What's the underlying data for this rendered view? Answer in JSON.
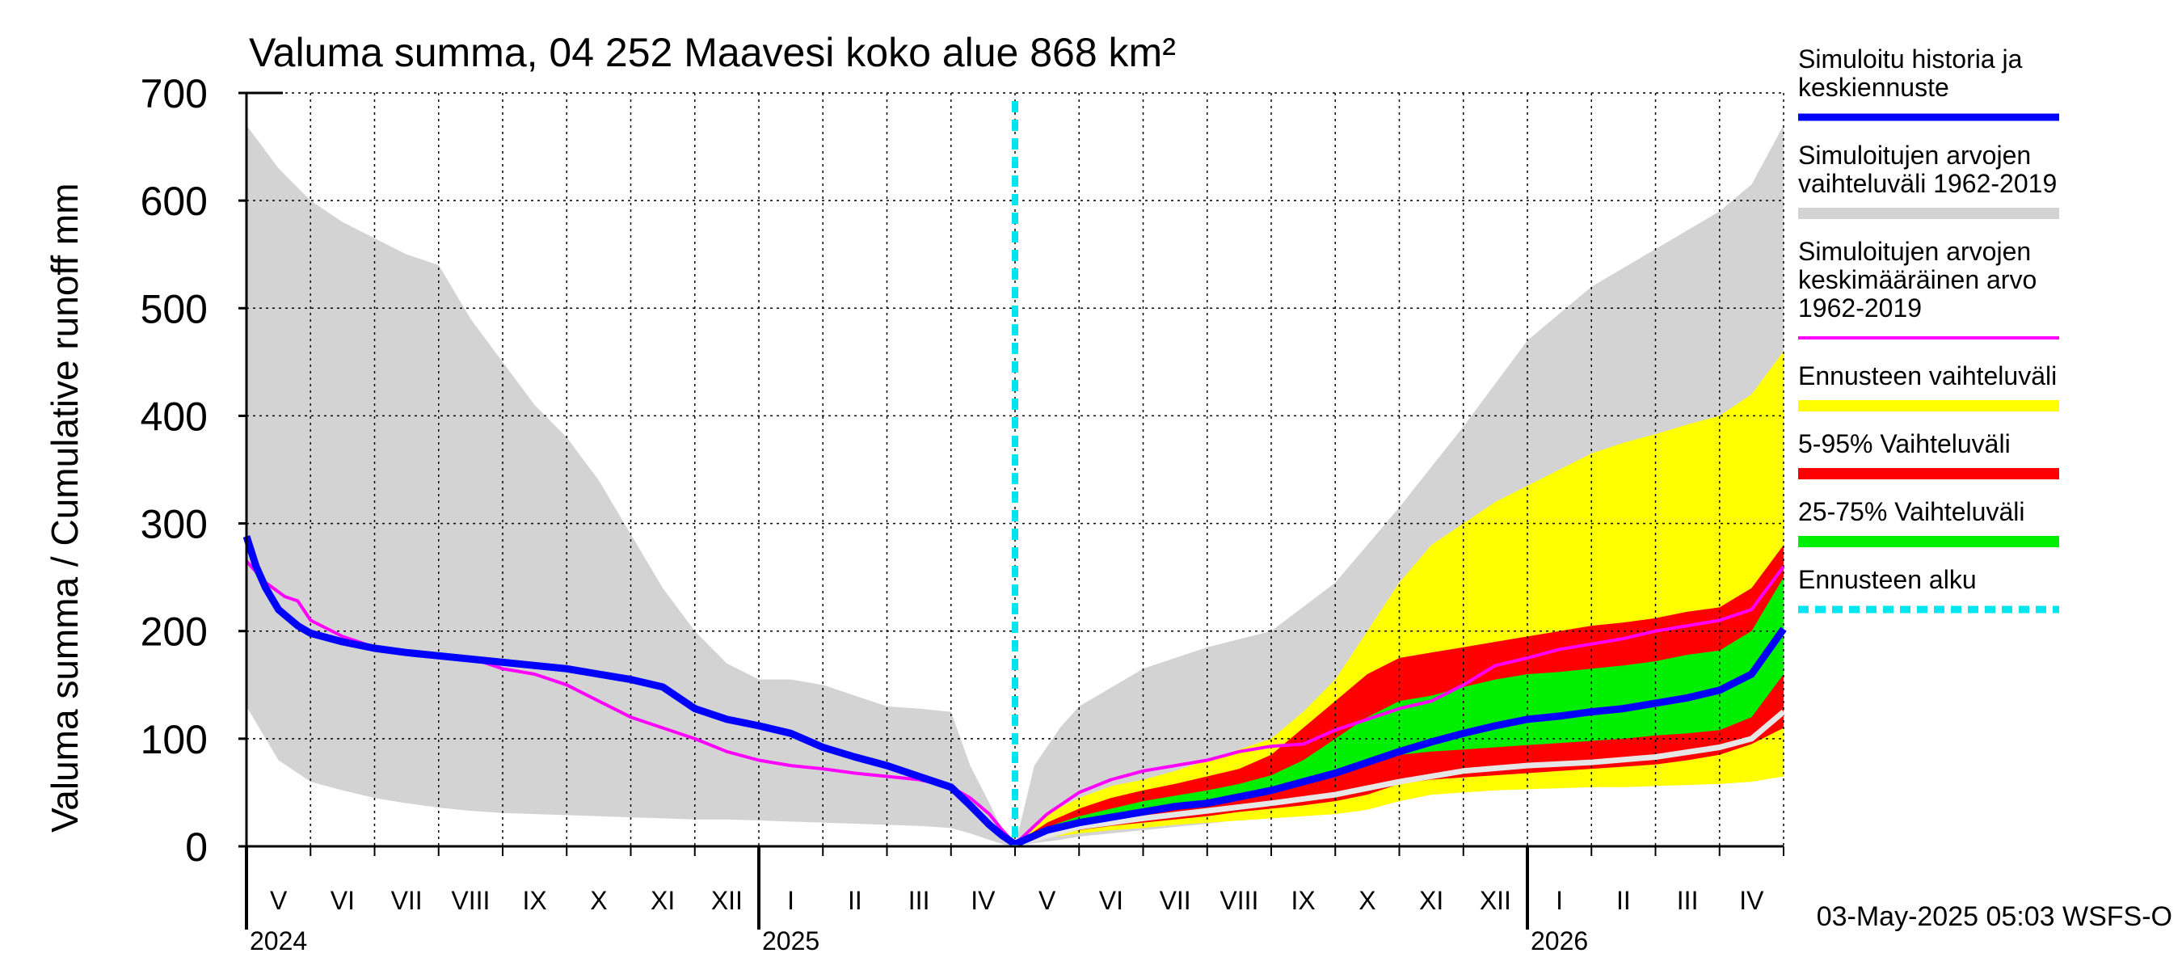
{
  "chart_data": {
    "type": "area",
    "title": "Valuma summa, 04 252 Maavesi koko alue 868 km²",
    "ylabel": "Valuma summa / Cumulative runoff    mm",
    "ylim": [
      0,
      700
    ],
    "yticks": [
      0,
      100,
      200,
      300,
      400,
      500,
      600,
      700
    ],
    "x_range_months": [
      0,
      24
    ],
    "forecast_start_month": 12,
    "month_labels": [
      "V",
      "VI",
      "VII",
      "VIII",
      "IX",
      "X",
      "XI",
      "XII",
      "I",
      "II",
      "III",
      "IV",
      "V",
      "VI",
      "VII",
      "VIII",
      "IX",
      "X",
      "XI",
      "XII",
      "I",
      "II",
      "III",
      "IV"
    ],
    "year_labels": [
      {
        "label": "2024",
        "month": 0
      },
      {
        "label": "2025",
        "month": 8
      },
      {
        "label": "2026",
        "month": 20
      }
    ],
    "colors": {
      "history_range": "#d3d3d3",
      "mean": "#ff00ff",
      "simulated": "#0000ff",
      "forecast_range": "#ffff00",
      "p5_95": "#ff0000",
      "p25_75": "#00ee00",
      "forecast_start": "#00e5ee",
      "median_forecast": "#e6e6e6"
    },
    "legend": [
      {
        "label": "Simuloitu historia ja\nkeskiennuste",
        "color": "#0000ff",
        "style": "line"
      },
      {
        "label": "Simuloitujen arvojen\nvaihteluväli 1962-2019",
        "color": "#d3d3d3",
        "style": "band"
      },
      {
        "label": "Simuloitujen arvojen\nkeskimääräinen arvo\n   1962-2019",
        "color": "#ff00ff",
        "style": "thinline"
      },
      {
        "label": "Ennusteen vaihteluväli",
        "color": "#ffff00",
        "style": "band"
      },
      {
        "label": "5-95% Vaihteluväli",
        "color": "#ff0000",
        "style": "band"
      },
      {
        "label": "25-75% Vaihteluväli",
        "color": "#00ee00",
        "style": "band"
      },
      {
        "label": "Ennusteen alku",
        "color": "#00e5ee",
        "style": "dashed"
      }
    ],
    "history_range": {
      "x": [
        0,
        0.5,
        1,
        1.5,
        2,
        2.5,
        3,
        3.5,
        4,
        4.5,
        5,
        5.5,
        6,
        6.5,
        7,
        7.5,
        8,
        8.5,
        9,
        9.5,
        10,
        10.5,
        11,
        11.3,
        11.6,
        11.8,
        12
      ],
      "upper": [
        670,
        630,
        600,
        580,
        565,
        550,
        540,
        490,
        450,
        410,
        380,
        340,
        290,
        240,
        200,
        170,
        155,
        155,
        150,
        140,
        130,
        128,
        125,
        75,
        40,
        15,
        0
      ],
      "lower": [
        130,
        80,
        60,
        52,
        45,
        40,
        36,
        33,
        31,
        30,
        29,
        28,
        27,
        26,
        25,
        25,
        24,
        23,
        22,
        21,
        20,
        19,
        17,
        12,
        6,
        2,
        0
      ]
    },
    "history_range_forecast": {
      "x": [
        12,
        12.3,
        12.7,
        13,
        14,
        15,
        16,
        17,
        18,
        19,
        20,
        21,
        22,
        23,
        23.5,
        24
      ],
      "upper": [
        0,
        75,
        110,
        130,
        165,
        185,
        200,
        245,
        315,
        390,
        470,
        520,
        555,
        590,
        615,
        670
      ],
      "lower": [
        0,
        3,
        6,
        9,
        15,
        21,
        28,
        38,
        50,
        55,
        58,
        60,
        62,
        64,
        66,
        70
      ]
    },
    "mean_series": {
      "x": [
        0,
        0.3,
        0.6,
        0.8,
        1,
        1.5,
        2,
        2.5,
        3,
        3.5,
        4,
        4.5,
        5,
        5.5,
        6,
        6.5,
        7,
        7.5,
        8,
        8.5,
        9,
        9.5,
        10,
        10.5,
        11,
        11.3,
        11.6,
        11.8,
        12,
        12.5,
        13,
        13.5,
        14,
        14.5,
        15,
        15.5,
        16,
        16.5,
        17,
        17.5,
        18,
        18.5,
        19,
        19.5,
        20,
        20.5,
        21,
        21.5,
        22,
        22.5,
        23,
        23.5,
        24
      ],
      "y": [
        265,
        245,
        232,
        228,
        210,
        195,
        185,
        180,
        177,
        175,
        165,
        160,
        150,
        135,
        120,
        110,
        100,
        88,
        80,
        75,
        72,
        68,
        65,
        62,
        55,
        45,
        30,
        15,
        2,
        30,
        50,
        62,
        70,
        75,
        80,
        88,
        93,
        95,
        108,
        118,
        128,
        135,
        150,
        168,
        175,
        183,
        188,
        193,
        200,
        205,
        210,
        220,
        260
      ]
    },
    "simulated_series": {
      "x": [
        0,
        0.15,
        0.3,
        0.5,
        0.8,
        1,
        1.5,
        2,
        2.5,
        3,
        3.5,
        4,
        4.5,
        5,
        5.5,
        6,
        6.5,
        7,
        7.5,
        8,
        8.5,
        9,
        9.5,
        10,
        10.5,
        11,
        11.3,
        11.6,
        11.8,
        12,
        12.5,
        13,
        13.5,
        14,
        14.5,
        15,
        15.5,
        16,
        16.5,
        17,
        17.5,
        18,
        18.5,
        19,
        19.5,
        20,
        20.5,
        21,
        21.5,
        22,
        22.5,
        23,
        23.5,
        24
      ],
      "y": [
        288,
        260,
        240,
        220,
        205,
        198,
        190,
        184,
        180,
        177,
        174,
        171,
        168,
        165,
        160,
        155,
        148,
        128,
        118,
        112,
        105,
        92,
        83,
        75,
        65,
        55,
        38,
        20,
        10,
        2,
        15,
        22,
        27,
        32,
        37,
        40,
        46,
        52,
        60,
        68,
        78,
        88,
        97,
        105,
        112,
        118,
        121,
        125,
        128,
        133,
        138,
        145,
        160,
        202
      ]
    },
    "median_forecast_series": {
      "x": [
        12,
        13,
        14,
        15,
        16,
        17,
        18,
        19,
        20,
        21,
        22,
        23,
        23.5,
        24
      ],
      "y": [
        2,
        18,
        26,
        33,
        40,
        48,
        60,
        70,
        75,
        78,
        83,
        92,
        100,
        125
      ]
    },
    "forecast_bands": {
      "x": [
        12,
        12.5,
        13,
        13.5,
        14,
        14.5,
        15,
        15.5,
        16,
        16.5,
        17,
        17.5,
        18,
        18.5,
        19,
        19.5,
        20,
        20.5,
        21,
        21.5,
        22,
        22.5,
        23,
        23.5,
        24
      ],
      "max": [
        2,
        30,
        45,
        56,
        62,
        70,
        80,
        90,
        100,
        125,
        155,
        200,
        245,
        280,
        300,
        320,
        335,
        350,
        365,
        375,
        383,
        392,
        400,
        420,
        460
      ],
      "p95": [
        2,
        22,
        35,
        45,
        52,
        58,
        65,
        72,
        85,
        110,
        135,
        160,
        175,
        180,
        185,
        190,
        195,
        200,
        205,
        208,
        212,
        218,
        222,
        240,
        280
      ],
      "p75": [
        2,
        18,
        28,
        35,
        42,
        47,
        52,
        58,
        66,
        80,
        100,
        120,
        135,
        140,
        148,
        155,
        160,
        162,
        165,
        168,
        172,
        178,
        182,
        200,
        250
      ],
      "p25": [
        2,
        14,
        22,
        27,
        33,
        38,
        42,
        47,
        52,
        60,
        70,
        78,
        85,
        88,
        90,
        92,
        94,
        96,
        98,
        100,
        103,
        105,
        108,
        120,
        160
      ],
      "p5": [
        2,
        10,
        15,
        19,
        22,
        25,
        28,
        32,
        35,
        38,
        42,
        48,
        58,
        62,
        64,
        66,
        68,
        70,
        72,
        74,
        76,
        80,
        85,
        95,
        110
      ],
      "min": [
        2,
        8,
        12,
        15,
        17,
        20,
        22,
        24,
        26,
        28,
        30,
        34,
        42,
        48,
        50,
        52,
        53,
        54,
        55,
        55,
        56,
        57,
        58,
        60,
        65
      ]
    },
    "footer": "03-May-2025 05:03 WSFS-O"
  }
}
